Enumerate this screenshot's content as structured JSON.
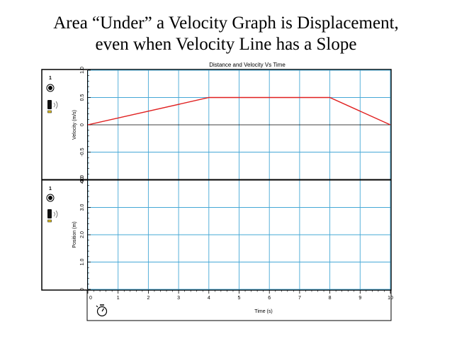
{
  "slide": {
    "title_line1": "Area “Under” a Velocity Graph is Displacement,",
    "title_line2": "even when Velocity Line has a Slope"
  },
  "panel": {
    "graph_title": "Distance  and  Velocity  Vs  Time",
    "top_sensor_number": "1",
    "bottom_sensor_number": "1",
    "sensor_icon": "sensor-dot-icon",
    "device_icon": "motion-detector-icon",
    "timer_icon": "stopwatch-icon"
  },
  "chart_data": [
    {
      "type": "line",
      "ylabel": "Velocity (m/s)",
      "xlim": [
        0,
        10
      ],
      "ylim": [
        -1.0,
        1.0
      ],
      "yticks": [
        -1.0,
        -0.5,
        0,
        0.5,
        1.0
      ],
      "ytick_labels": [
        "-1.0",
        "-0.5",
        "0",
        "0.5",
        "1.0"
      ],
      "grid": true,
      "color": "#e02020",
      "points": [
        [
          0,
          0
        ],
        [
          4,
          0.5
        ],
        [
          8,
          0.5
        ],
        [
          10,
          0
        ]
      ]
    },
    {
      "type": "line",
      "ylabel": "Position (m)",
      "xlabel": "Time (s)",
      "xlim": [
        0,
        10
      ],
      "ylim": [
        0,
        4.0
      ],
      "yticks": [
        0,
        1.0,
        2.0,
        3.0,
        4.0
      ],
      "ytick_labels": [
        "0",
        "1.0",
        "2.0",
        "3.0",
        "4.0"
      ],
      "xticks": [
        0,
        1,
        2,
        3,
        4,
        5,
        6,
        7,
        8,
        9,
        10
      ],
      "xtick_labels": [
        "0",
        "1",
        "2",
        "3",
        "4",
        "5",
        "6",
        "7",
        "8",
        "9",
        "10"
      ],
      "grid": true,
      "points": []
    }
  ]
}
